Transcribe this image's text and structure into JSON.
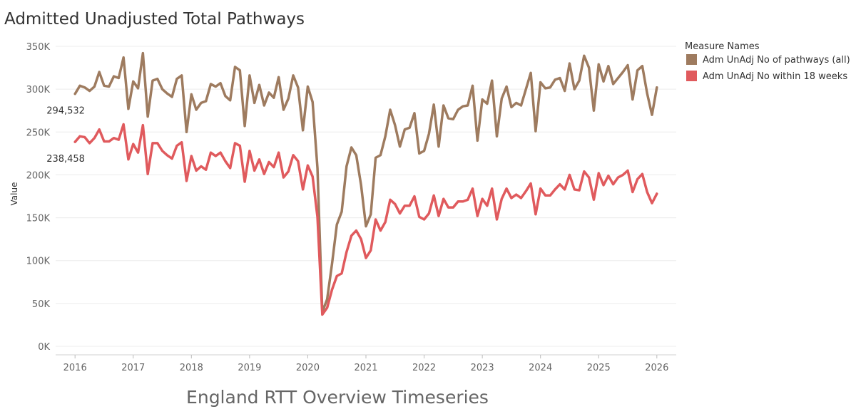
{
  "chart_data": {
    "type": "line",
    "title": "Admitted Unadjusted Total Pathways",
    "subtitle": "England RTT Overview Timeseries",
    "xlabel": "",
    "ylabel": "Value",
    "ylim": [
      0,
      350000
    ],
    "xlim": [
      "2015-09",
      "2026-05"
    ],
    "y_ticks": [
      0,
      50000,
      100000,
      150000,
      200000,
      250000,
      300000,
      350000
    ],
    "y_tick_labels": [
      "0K",
      "50K",
      "100K",
      "150K",
      "200K",
      "250K",
      "300K",
      "350K"
    ],
    "x_ticks": [
      "2016-01",
      "2017-01",
      "2018-01",
      "2019-01",
      "2020-01",
      "2021-01",
      "2022-01",
      "2023-01",
      "2024-01",
      "2025-01",
      "2026-01"
    ],
    "x_tick_labels": [
      "2016",
      "2017",
      "2018",
      "2019",
      "2020",
      "2021",
      "2022",
      "2023",
      "2024",
      "2025",
      "2026"
    ],
    "grid": true,
    "legend": {
      "title": "Measure Names",
      "placement": "top-right"
    },
    "start_month": "2016-01",
    "series": [
      {
        "name": "Adm UnAdj No of pathways (all)",
        "color": "#9e7b5f",
        "first_value_label": "294,532",
        "values": [
          294532,
          304000,
          302000,
          298000,
          303000,
          320000,
          304000,
          303000,
          315000,
          313000,
          337000,
          277000,
          309000,
          301000,
          342000,
          268000,
          310000,
          312000,
          300000,
          295000,
          291000,
          312000,
          316000,
          250000,
          294000,
          276000,
          284000,
          286000,
          306000,
          303000,
          307000,
          292000,
          287000,
          326000,
          322000,
          257000,
          316000,
          284000,
          305000,
          281000,
          296000,
          290000,
          314000,
          276000,
          289000,
          316000,
          302000,
          252000,
          303000,
          285000,
          208000,
          40000,
          55000,
          96000,
          142000,
          157000,
          210000,
          232000,
          223000,
          188000,
          140000,
          154000,
          220000,
          223000,
          245000,
          276000,
          258000,
          233000,
          253000,
          255000,
          272000,
          225000,
          228000,
          248000,
          282000,
          233000,
          281000,
          266000,
          265000,
          276000,
          280000,
          281000,
          304000,
          240000,
          288000,
          283000,
          310000,
          245000,
          289000,
          303000,
          279000,
          284000,
          281000,
          300000,
          319000,
          251000,
          308000,
          301000,
          302000,
          311000,
          313000,
          298000,
          330000,
          300000,
          310000,
          339000,
          325000,
          275000,
          329000,
          309000,
          327000,
          306000,
          313000,
          320000,
          328000,
          288000,
          322000,
          327000,
          295000,
          270000,
          302000
        ]
      },
      {
        "name": "Adm UnAdj No within 18 weeks",
        "color": "#e05a5d",
        "first_value_label": "238,458",
        "values": [
          238458,
          245000,
          244000,
          237000,
          243000,
          253000,
          239000,
          239000,
          243000,
          241000,
          259000,
          218000,
          236000,
          226000,
          258000,
          201000,
          237000,
          237000,
          228000,
          223000,
          219000,
          234000,
          238000,
          193000,
          222000,
          205000,
          210000,
          206000,
          226000,
          222000,
          226000,
          216000,
          208000,
          237000,
          234000,
          192000,
          228000,
          205000,
          218000,
          201000,
          215000,
          209000,
          226000,
          197000,
          204000,
          223000,
          216000,
          183000,
          211000,
          198000,
          151000,
          37000,
          45000,
          66000,
          82000,
          85000,
          110000,
          129000,
          135000,
          125000,
          103000,
          112000,
          148000,
          135000,
          145000,
          171000,
          166000,
          155000,
          164000,
          164000,
          175000,
          151000,
          148000,
          155000,
          176000,
          152000,
          172000,
          162000,
          162000,
          169000,
          169000,
          171000,
          184000,
          152000,
          172000,
          164000,
          184000,
          148000,
          172000,
          184000,
          173000,
          177000,
          173000,
          181000,
          190000,
          154000,
          184000,
          176000,
          176000,
          183000,
          189000,
          183000,
          200000,
          183000,
          182000,
          204000,
          197000,
          171000,
          202000,
          188000,
          199000,
          189000,
          197000,
          200000,
          205000,
          180000,
          195000,
          201000,
          180000,
          167000,
          178000
        ]
      }
    ]
  }
}
